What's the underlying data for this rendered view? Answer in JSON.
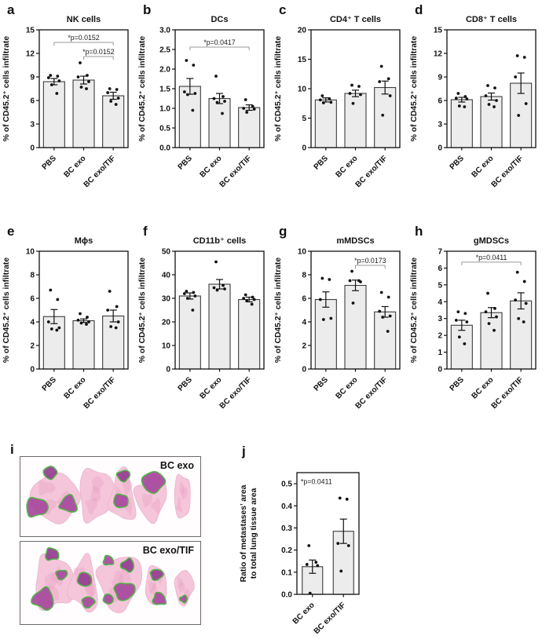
{
  "colors": {
    "bar_fill": "#ececec",
    "bar_stroke": "#3c3c3c",
    "frame": "#111111",
    "point": "#111111",
    "error_bar": "#111111",
    "bracket": "#999999",
    "bracket_text": "#1a1a1a",
    "tissue_pink": "#f5c6da",
    "tissue_pink_dark": "#e79cc0",
    "metastasis_purple": "#a84a9f",
    "metastasis_purple_dark": "#953e92",
    "metastasis_outline_green": "#45b13c"
  },
  "figure": {
    "histology": {
      "letter": "i",
      "boxes": [
        {
          "label": "BC exo"
        },
        {
          "label": "BC exo/TIF"
        }
      ]
    }
  },
  "chart_data": [
    {
      "type": "bar",
      "slot": "grid",
      "letter": "a",
      "title": "NK cells",
      "ylabel": "% of CD45.2⁺ cells infiltrate",
      "ylim": [
        0,
        15
      ],
      "yticks": [
        "0",
        "3",
        "6",
        "9",
        "12",
        "15"
      ],
      "categories": [
        "PBS",
        "BC exo",
        "BC exo/TIF"
      ],
      "means": [
        8.4,
        8.6,
        6.6
      ],
      "sem": [
        0.4,
        0.5,
        0.45
      ],
      "points": [
        [
          9.2,
          9.1,
          8.9,
          8.5,
          8.0,
          6.9
        ],
        [
          10.8,
          9.2,
          9.0,
          8.4,
          7.7,
          7.5
        ],
        [
          7.5,
          7.4,
          7.0,
          6.3,
          5.9,
          5.5
        ]
      ],
      "brackets": [
        {
          "x1": 0,
          "x2": 2,
          "y": 13.4,
          "label": "*p=0.0152"
        },
        {
          "x1": 1,
          "x2": 2,
          "y": 11.6,
          "label": "*p=0.0152"
        }
      ],
      "annotations": []
    },
    {
      "type": "bar",
      "slot": "grid",
      "letter": "b",
      "title": "DCs",
      "ylabel": "% of CD45.2⁺ cells infiltrate",
      "ylim": [
        0,
        3
      ],
      "yticks": [
        "0.0",
        "0.5",
        "1.0",
        "1.5",
        "2.0",
        "2.5",
        "3.0"
      ],
      "categories": [
        "PBS",
        "BC exo",
        "BC exo/TIF"
      ],
      "means": [
        1.56,
        1.25,
        1.02
      ],
      "sem": [
        0.2,
        0.13,
        0.07
      ],
      "points": [
        [
          2.22,
          2.1,
          1.42,
          1.38,
          1.35,
          0.95
        ],
        [
          1.82,
          1.3,
          1.25,
          1.18,
          1.15,
          0.87
        ],
        [
          1.22,
          1.05,
          1.0,
          0.98,
          0.9
        ]
      ],
      "brackets": [
        {
          "x1": 0,
          "x2": 2,
          "y": 2.56,
          "label": "*p=0.0417"
        }
      ],
      "annotations": []
    },
    {
      "type": "bar",
      "slot": "grid",
      "letter": "c",
      "title": "CD4⁺ T cells",
      "ylabel": "% of CD45.2⁺ cells infiltrate",
      "ylim": [
        0,
        20
      ],
      "yticks": [
        "0",
        "5",
        "10",
        "15",
        "20"
      ],
      "categories": [
        "PBS",
        "BC exo",
        "BC exo/TIF"
      ],
      "means": [
        8.1,
        9.2,
        10.2
      ],
      "sem": [
        0.35,
        0.55,
        1.1
      ],
      "points": [
        [
          8.8,
          8.3,
          8.1,
          7.7,
          7.6
        ],
        [
          10.6,
          10.4,
          9.2,
          9.0,
          7.5
        ],
        [
          13.8,
          11.7,
          11.2,
          8.8,
          5.5
        ]
      ],
      "brackets": [],
      "annotations": []
    },
    {
      "type": "bar",
      "slot": "grid",
      "letter": "d",
      "title": "CD8⁺ T cells",
      "ylabel": "% of CD45.2⁺ cells infiltrate",
      "ylim": [
        0,
        15
      ],
      "yticks": [
        "0",
        "3",
        "6",
        "9",
        "12",
        "15"
      ],
      "categories": [
        "PBS",
        "BC exo",
        "BC exo/TIF"
      ],
      "means": [
        6.1,
        6.5,
        8.2
      ],
      "sem": [
        0.3,
        0.45,
        1.3
      ],
      "points": [
        [
          6.9,
          6.5,
          6.3,
          6.2,
          5.3,
          5.2
        ],
        [
          7.9,
          7.6,
          6.6,
          6.0,
          5.5,
          5.2
        ],
        [
          11.7,
          11.5,
          9.0,
          5.6,
          4.1
        ]
      ],
      "brackets": [],
      "annotations": []
    },
    {
      "type": "bar",
      "slot": "grid",
      "letter": "e",
      "title": "Mϕs",
      "ylabel": "% of CD45.2⁺ cells infiltrate",
      "ylim": [
        0,
        10
      ],
      "yticks": [
        "0",
        "2",
        "4",
        "6",
        "8",
        "10"
      ],
      "categories": [
        "PBS",
        "BC exo",
        "BC exo/TIF"
      ],
      "means": [
        4.45,
        4.1,
        4.5
      ],
      "sem": [
        0.6,
        0.15,
        0.5
      ],
      "points": [
        [
          6.7,
          5.9,
          4.0,
          3.5,
          3.4,
          3.3
        ],
        [
          4.7,
          4.4,
          4.15,
          4.0,
          3.9,
          3.8
        ],
        [
          6.6,
          5.3,
          5.0,
          4.0,
          3.6,
          3.5
        ]
      ],
      "brackets": [],
      "annotations": []
    },
    {
      "type": "bar",
      "slot": "grid",
      "letter": "f",
      "title": "CD11b⁺ cells",
      "ylabel": "% of CD45.2⁺ cells infiltrate",
      "ylim": [
        0,
        50
      ],
      "yticks": [
        "0",
        "10",
        "20",
        "30",
        "40",
        "50"
      ],
      "categories": [
        "PBS",
        "BC exo",
        "BC exo/TIF"
      ],
      "means": [
        31,
        36,
        29.5
      ],
      "sem": [
        1.3,
        2.0,
        1.0
      ],
      "points": [
        [
          33,
          32.5,
          32,
          31,
          30,
          25
        ],
        [
          45.5,
          35.5,
          34.5,
          34,
          33.5
        ],
        [
          31.5,
          30.5,
          30,
          29.5,
          29,
          27.5
        ]
      ],
      "brackets": [],
      "annotations": []
    },
    {
      "type": "bar",
      "slot": "grid",
      "letter": "g",
      "title": "mMDSCs",
      "ylabel": "% of CD45.2⁺ cells infiltrate",
      "ylim": [
        0,
        10
      ],
      "yticks": [
        "0",
        "2",
        "4",
        "6",
        "8",
        "10"
      ],
      "categories": [
        "PBS",
        "BC exo",
        "BC exo/TIF"
      ],
      "means": [
        5.9,
        7.1,
        4.85
      ],
      "sem": [
        0.65,
        0.45,
        0.45
      ],
      "points": [
        [
          7.7,
          7.6,
          5.9,
          4.3,
          4.2
        ],
        [
          8.3,
          7.5,
          7.5,
          7.4,
          5.6
        ],
        [
          6.5,
          6.1,
          4.9,
          4.5,
          4.4,
          3.2
        ]
      ],
      "brackets": [
        {
          "x1": 1,
          "x2": 2,
          "y": 8.8,
          "label": "*p=0.0173"
        }
      ],
      "annotations": []
    },
    {
      "type": "bar",
      "slot": "grid",
      "letter": "h",
      "title": "gMDSCs",
      "ylabel": "% of CD45.2⁺ cells infiltrate",
      "ylim": [
        0,
        7
      ],
      "yticks": [
        "0",
        "1",
        "2",
        "3",
        "4",
        "5",
        "6",
        "7"
      ],
      "categories": [
        "PBS",
        "BC exo",
        "BC exo/TIF"
      ],
      "means": [
        2.6,
        3.35,
        4.05
      ],
      "sem": [
        0.3,
        0.3,
        0.48
      ],
      "points": [
        [
          3.4,
          3.3,
          2.9,
          2.8,
          1.9,
          1.5
        ],
        [
          4.5,
          3.6,
          3.4,
          3.1,
          2.7,
          2.3
        ],
        [
          5.75,
          5.2,
          4.1,
          3.9,
          3.0,
          2.8
        ]
      ],
      "brackets": [
        {
          "x1": 0,
          "x2": 2,
          "y": 6.35,
          "label": "*p=0.0411"
        }
      ],
      "annotations": []
    },
    {
      "type": "bar",
      "slot": "single",
      "letter": "j",
      "title": "",
      "ylabel_lines": [
        "Ratio of metastases’ area",
        "to total lung tissue area"
      ],
      "ylim": [
        0,
        0.55
      ],
      "yticks": [
        "0.0",
        "0.1",
        "0.2",
        "0.3",
        "0.4",
        "0.5"
      ],
      "categories": [
        "BC exo",
        "BC exo/TIF"
      ],
      "means": [
        0.125,
        0.285
      ],
      "sem": [
        0.03,
        0.055
      ],
      "points": [
        [
          0.22,
          0.145,
          0.135,
          0.13,
          0.005
        ],
        [
          0.435,
          0.43,
          0.23,
          0.22,
          0.105
        ]
      ],
      "brackets": [],
      "annotations": [
        {
          "y": 0.51,
          "label": "*p=0.0411"
        }
      ]
    }
  ]
}
